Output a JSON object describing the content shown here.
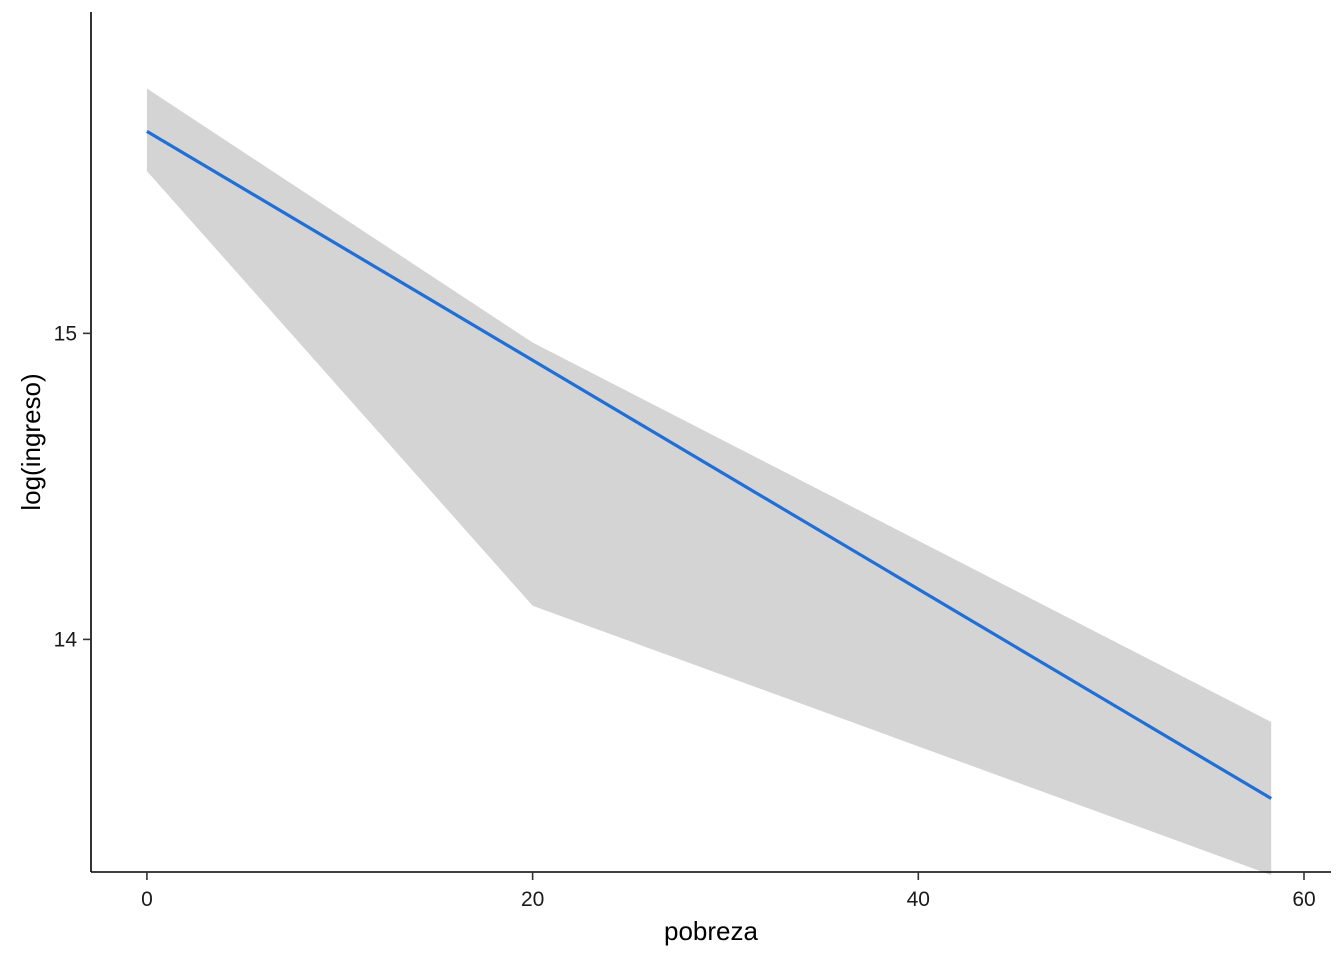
{
  "chart_data": {
    "type": "line",
    "xlabel": "pobreza",
    "ylabel": "log(ingreso)",
    "xlim": [
      -2.9,
      61.4
    ],
    "ylim": [
      13.24,
      16.05
    ],
    "x_ticks": [
      0,
      20,
      40,
      60
    ],
    "x_tick_labels": [
      "0",
      "20",
      "40",
      "60"
    ],
    "y_ticks": [
      14,
      15
    ],
    "y_tick_labels": [
      "14",
      "15"
    ],
    "grid": false,
    "legend": "none",
    "series": [
      {
        "x": [
          0,
          58.3
        ],
        "y": [
          15.66,
          13.48
        ],
        "ci_lower": [
          15.53,
          14.11,
          13.23
        ],
        "ci_upper": [
          15.8,
          14.97,
          13.73
        ],
        "ci_x": [
          0,
          20,
          58.3
        ]
      }
    ],
    "colors": {
      "line": "#1f6fd6",
      "band": "#d4d4d4",
      "axis": "#000000"
    }
  }
}
